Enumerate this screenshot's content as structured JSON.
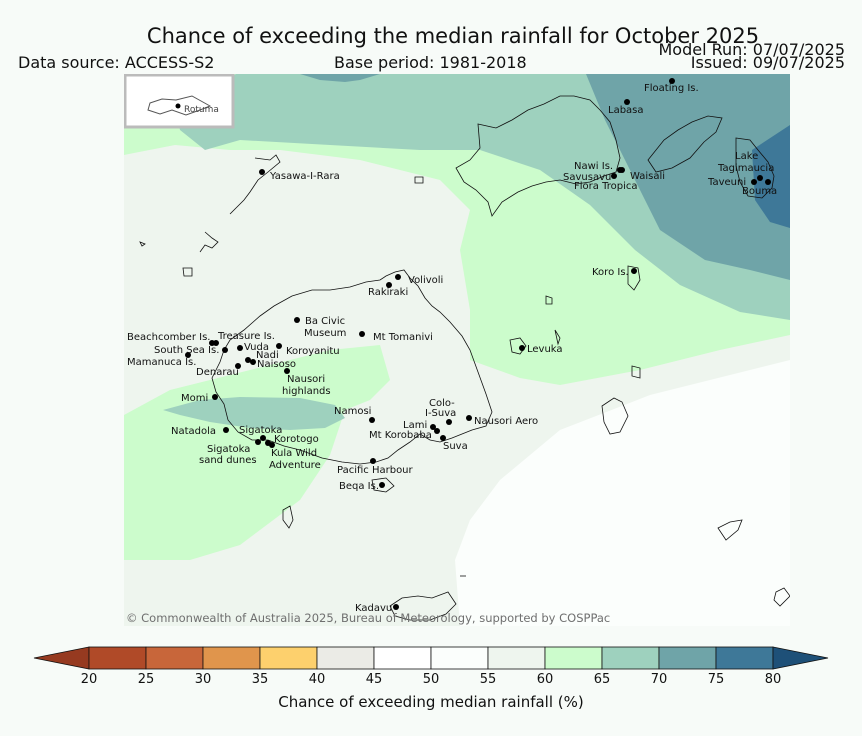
{
  "header": {
    "title": "Chance of exceeding the median rainfall for October 2025",
    "data_source": "Data source: ACCESS-S2",
    "base_period": "Base period: 1981-2018",
    "model_run": "Model Run: 07/07/2025",
    "issued": "Issued: 09/07/2025"
  },
  "inset": {
    "label": "Rotuma"
  },
  "places": [
    "Floating Is.",
    "Labasa",
    "Nawi Is.",
    "Savusavu",
    "Flora Tropica",
    "Waisali",
    "Lake",
    "Tagimaucia",
    "Taveuni",
    "Bouma",
    "Yasawa-I-Rara",
    "Koro Is.",
    "Volivoli",
    "Rakiraki",
    "Ba Civic",
    "Museum",
    "Mt Tomanivi",
    "Beachcomber Is.",
    "Treasure Is.",
    "South Sea Is.",
    "Vuda",
    "Koroyanitu",
    "Nadi",
    "Mamanuca Is.",
    "Naisoso",
    "Denarau",
    "Nausori",
    "highlands",
    "Levuka",
    "Momi",
    "Namosi",
    "Colo-",
    "I-Suva",
    "Nausori Aero",
    "Lami",
    "Mt Korobaba",
    "Suva",
    "Natadola",
    "Sigatoka",
    "Korotogo",
    "Sigatoka",
    "sand dunes",
    "Kula Wild",
    "Adventure",
    "Pacific Harbour",
    "Beqa Is.",
    "Kadavu"
  ],
  "copyright": "© Commonwealth of Australia 2025, Bureau of Meteorology, supported by COSPPac",
  "colorbar": {
    "label": "Chance of exceeding median rainfall (%)",
    "ticks": [
      "20",
      "25",
      "30",
      "35",
      "40",
      "45",
      "50",
      "55",
      "60",
      "65",
      "70",
      "75",
      "80"
    ],
    "colors": [
      "#b04a28",
      "#c8663a",
      "#e0954c",
      "#fdd06d",
      "#ebebe6",
      "#ffffff",
      "#fbfefc",
      "#eef5ee",
      "#ccfccc",
      "#9ed1be",
      "#6fa4a8",
      "#3e7898"
    ],
    "under_color": "#963a20",
    "over_color": "#1e5078"
  }
}
